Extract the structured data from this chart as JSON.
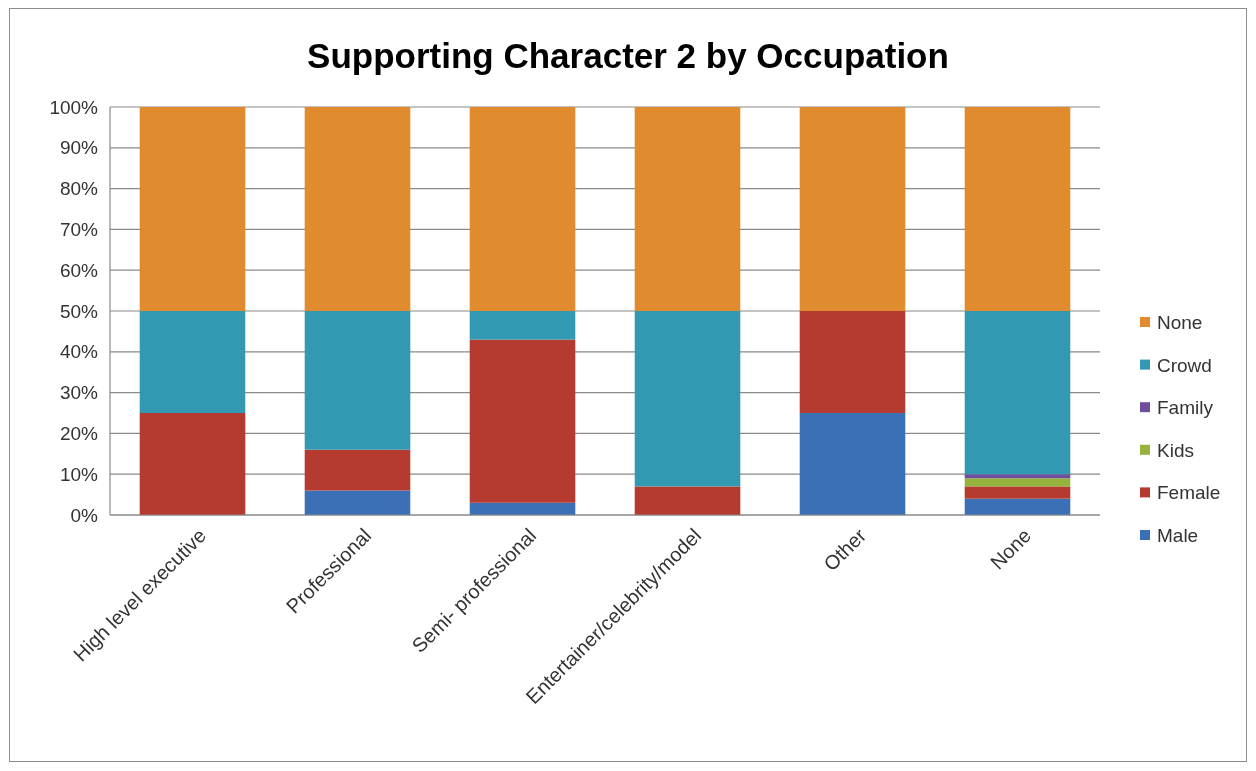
{
  "chart_data": {
    "type": "bar",
    "title": "Supporting Character 2 by Occupation",
    "categories": [
      "High level executive",
      "Professional",
      "Semi- professional",
      "Entertainer/celebrity/model",
      "Other",
      "None"
    ],
    "series": [
      {
        "name": "Male",
        "color": "#3b6fb6",
        "values": [
          0,
          6,
          3,
          0,
          25,
          4
        ]
      },
      {
        "name": "Female",
        "color": "#b53a2f",
        "values": [
          25,
          10,
          40,
          7,
          25,
          3
        ]
      },
      {
        "name": "Kids",
        "color": "#96b43c",
        "values": [
          0,
          0,
          0,
          0,
          0,
          2
        ]
      },
      {
        "name": "Family",
        "color": "#6f4f9c",
        "values": [
          0,
          0,
          0,
          0,
          0,
          1
        ]
      },
      {
        "name": "Crowd",
        "color": "#3399b3",
        "values": [
          25,
          34,
          7,
          43,
          0,
          40
        ]
      },
      {
        "name": "None",
        "color": "#e08b2d",
        "values": [
          50,
          50,
          50,
          50,
          50,
          50
        ]
      }
    ],
    "stacked": true,
    "ylim": [
      0,
      100
    ],
    "yticks": [
      {
        "value": 0,
        "label": "0%"
      },
      {
        "value": 10,
        "label": "10%"
      },
      {
        "value": 20,
        "label": "20%"
      },
      {
        "value": 30,
        "label": "30%"
      },
      {
        "value": 40,
        "label": "40%"
      },
      {
        "value": 50,
        "label": "50%"
      },
      {
        "value": 60,
        "label": "60%"
      },
      {
        "value": 70,
        "label": "70%"
      },
      {
        "value": 80,
        "label": "80%"
      },
      {
        "value": 90,
        "label": "90%"
      },
      {
        "value": 100,
        "label": "100%"
      }
    ],
    "grid": "y",
    "legend": "right"
  }
}
